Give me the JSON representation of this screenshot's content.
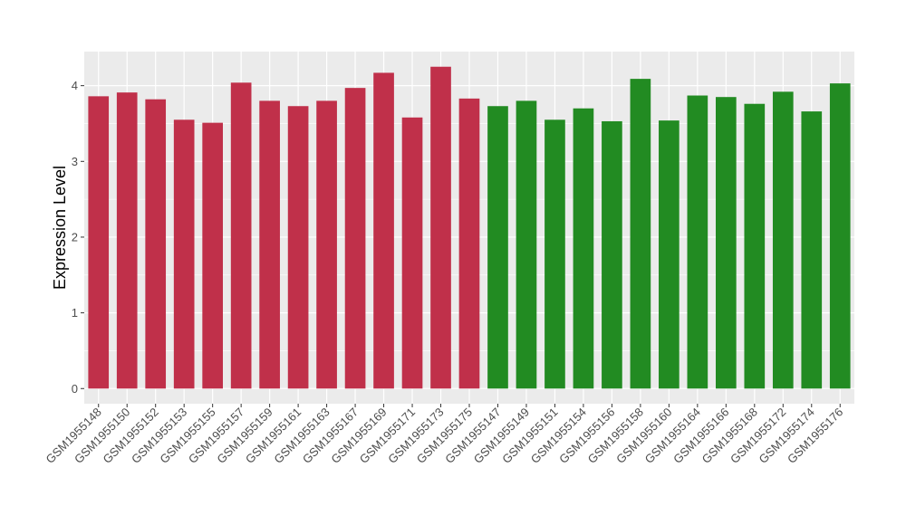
{
  "chart_data": {
    "type": "bar",
    "ylabel": "Expression Level",
    "xlabel": "",
    "ylim": [
      -0.2,
      4.45
    ],
    "yticks": [
      0,
      1,
      2,
      3,
      4
    ],
    "grid": true,
    "categories": [
      "GSM1955148",
      "GSM1955150",
      "GSM1955152",
      "GSM1955153",
      "GSM1955155",
      "GSM1955157",
      "GSM1955159",
      "GSM1955161",
      "GSM1955163",
      "GSM1955167",
      "GSM1955169",
      "GSM1955171",
      "GSM1955173",
      "GSM1955175",
      "GSM1955147",
      "GSM1955149",
      "GSM1955151",
      "GSM1955154",
      "GSM1955156",
      "GSM1955158",
      "GSM1955160",
      "GSM1955164",
      "GSM1955166",
      "GSM1955168",
      "GSM1955172",
      "GSM1955174",
      "GSM1955176"
    ],
    "values": [
      3.86,
      3.91,
      3.82,
      3.55,
      3.51,
      4.04,
      3.8,
      3.73,
      3.8,
      3.97,
      4.17,
      3.58,
      4.25,
      3.83,
      3.73,
      3.8,
      3.55,
      3.7,
      3.53,
      4.09,
      3.54,
      3.87,
      3.85,
      3.76,
      3.92,
      3.66,
      4.03
    ],
    "bar_colors": [
      "#c0304a",
      "#c0304a",
      "#c0304a",
      "#c0304a",
      "#c0304a",
      "#c0304a",
      "#c0304a",
      "#c0304a",
      "#c0304a",
      "#c0304a",
      "#c0304a",
      "#c0304a",
      "#c0304a",
      "#c0304a",
      "#228b22",
      "#228b22",
      "#228b22",
      "#228b22",
      "#228b22",
      "#228b22",
      "#228b22",
      "#228b22",
      "#228b22",
      "#228b22",
      "#228b22",
      "#228b22",
      "#228b22"
    ],
    "panel_color": "#ebebeb",
    "grid_color": "#ffffff"
  }
}
